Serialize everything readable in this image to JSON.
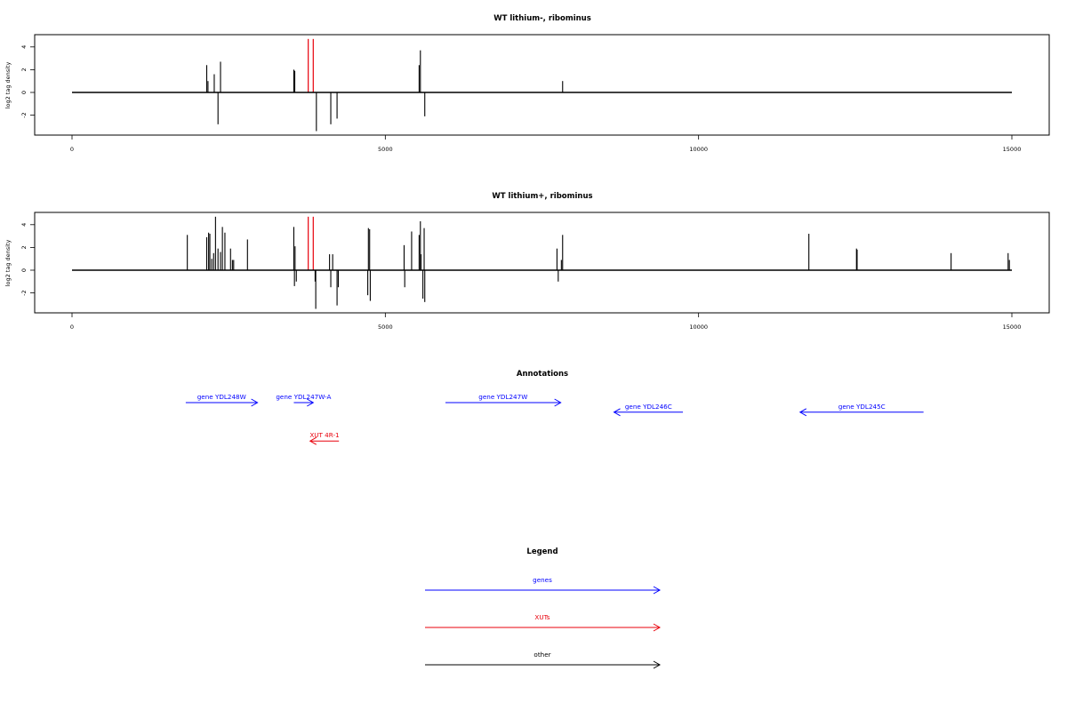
{
  "colors": {
    "gene": "#0000ff",
    "xut": "#e8000b",
    "other": "#000000",
    "signal": "#000000",
    "highlight": "#e8000b"
  },
  "chart_data": [
    {
      "type": "bar",
      "title": "WT lithium-, ribominus",
      "ylabel": "log2 tag density",
      "xlim": [
        0,
        15000
      ],
      "ylim": [
        -3.5,
        5
      ],
      "xticks": [
        "0",
        "5000",
        "10000",
        "15000"
      ],
      "yticks": [
        "4",
        "2",
        "0",
        "-2"
      ],
      "baseline": [
        0,
        15000
      ],
      "bars": [
        {
          "x": 2150,
          "y": 2.4
        },
        {
          "x": 2170,
          "y": 1.0
        },
        {
          "x": 2270,
          "y": 1.6
        },
        {
          "x": 2330,
          "y": -2.8
        },
        {
          "x": 2370,
          "y": 2.7
        },
        {
          "x": 3540,
          "y": 2.0
        },
        {
          "x": 3555,
          "y": 1.9
        },
        {
          "x": 3900,
          "y": -3.4
        },
        {
          "x": 4130,
          "y": -2.8
        },
        {
          "x": 4230,
          "y": -2.3
        },
        {
          "x": 5540,
          "y": 2.4
        },
        {
          "x": 5560,
          "y": 3.7
        },
        {
          "x": 5630,
          "y": -2.1
        },
        {
          "x": 7830,
          "y": 1.0
        }
      ],
      "highlights": [
        {
          "x": 3770,
          "y": 4.7
        },
        {
          "x": 3850,
          "y": 4.7
        }
      ]
    },
    {
      "type": "bar",
      "title": "WT lithium+, ribominus",
      "ylabel": "log2 tag density",
      "xlim": [
        0,
        15000
      ],
      "ylim": [
        -3.5,
        5
      ],
      "xticks": [
        "0",
        "5000",
        "10000",
        "15000"
      ],
      "yticks": [
        "4",
        "2",
        "0",
        "-2"
      ],
      "baseline": [
        0,
        15000
      ],
      "bars": [
        {
          "x": 1840,
          "y": 3.1
        },
        {
          "x": 2150,
          "y": 2.9
        },
        {
          "x": 2180,
          "y": 3.3
        },
        {
          "x": 2200,
          "y": 3.2
        },
        {
          "x": 2230,
          "y": 1.0
        },
        {
          "x": 2260,
          "y": 1.5
        },
        {
          "x": 2290,
          "y": 4.7
        },
        {
          "x": 2330,
          "y": 1.9
        },
        {
          "x": 2370,
          "y": 1.6
        },
        {
          "x": 2400,
          "y": 3.8
        },
        {
          "x": 2440,
          "y": 3.3
        },
        {
          "x": 2530,
          "y": 1.9
        },
        {
          "x": 2560,
          "y": 0.9
        },
        {
          "x": 2580,
          "y": 0.9
        },
        {
          "x": 2800,
          "y": 2.7
        },
        {
          "x": 3540,
          "y": 3.8
        },
        {
          "x": 3560,
          "y": 2.1
        },
        {
          "x": 3550,
          "y": -1.4
        },
        {
          "x": 3580,
          "y": -1.0
        },
        {
          "x": 3880,
          "y": -1.0
        },
        {
          "x": 3890,
          "y": -3.4
        },
        {
          "x": 4110,
          "y": 1.4
        },
        {
          "x": 4130,
          "y": -1.5
        },
        {
          "x": 4160,
          "y": 1.4
        },
        {
          "x": 4230,
          "y": -3.1
        },
        {
          "x": 4250,
          "y": -1.5
        },
        {
          "x": 4720,
          "y": -2.2
        },
        {
          "x": 4730,
          "y": 3.7
        },
        {
          "x": 4750,
          "y": 3.6
        },
        {
          "x": 4760,
          "y": -2.7
        },
        {
          "x": 5300,
          "y": 2.2
        },
        {
          "x": 5310,
          "y": -1.5
        },
        {
          "x": 5420,
          "y": 3.4
        },
        {
          "x": 5540,
          "y": 3.1
        },
        {
          "x": 5560,
          "y": 4.3
        },
        {
          "x": 5570,
          "y": 1.4
        },
        {
          "x": 5600,
          "y": -2.5
        },
        {
          "x": 5620,
          "y": 3.7
        },
        {
          "x": 5630,
          "y": -2.8
        },
        {
          "x": 7740,
          "y": 1.9
        },
        {
          "x": 7760,
          "y": -1.0
        },
        {
          "x": 7830,
          "y": 3.1
        },
        {
          "x": 7810,
          "y": 0.9
        },
        {
          "x": 11760,
          "y": 3.2
        },
        {
          "x": 12520,
          "y": 1.9
        },
        {
          "x": 12530,
          "y": 1.8
        },
        {
          "x": 14030,
          "y": 1.5
        },
        {
          "x": 14940,
          "y": 1.5
        },
        {
          "x": 14960,
          "y": 0.9
        }
      ],
      "highlights": [
        {
          "x": 3770,
          "y": 4.7
        },
        {
          "x": 3850,
          "y": 4.7
        }
      ]
    }
  ],
  "annotations": {
    "title": "Annotations",
    "items": [
      {
        "label": "gene YDL248W",
        "x1": 1815,
        "x2": 2960,
        "row": 0,
        "kind": "gene",
        "dir": "fwd"
      },
      {
        "label": "gene YDL247W-A",
        "x1": 3540,
        "x2": 3850,
        "row": 0,
        "kind": "gene",
        "dir": "fwd"
      },
      {
        "label": "gene YDL247W",
        "x1": 5960,
        "x2": 7800,
        "row": 0,
        "kind": "gene",
        "dir": "fwd"
      },
      {
        "label": "gene YDL246C",
        "x1": 8650,
        "x2": 9750,
        "row": 1,
        "kind": "gene",
        "dir": "rev"
      },
      {
        "label": "gene YDL245C",
        "x1": 11620,
        "x2": 13590,
        "row": 1,
        "kind": "gene",
        "dir": "rev"
      },
      {
        "label": "XUT 4R-1",
        "x1": 3800,
        "x2": 4260,
        "row": 4,
        "kind": "xut",
        "dir": "rev"
      }
    ]
  },
  "legend": {
    "title": "Legend",
    "items": [
      {
        "label": "genes",
        "kind": "gene"
      },
      {
        "label": "XUTs",
        "kind": "xut"
      },
      {
        "label": "other",
        "kind": "other"
      }
    ]
  }
}
